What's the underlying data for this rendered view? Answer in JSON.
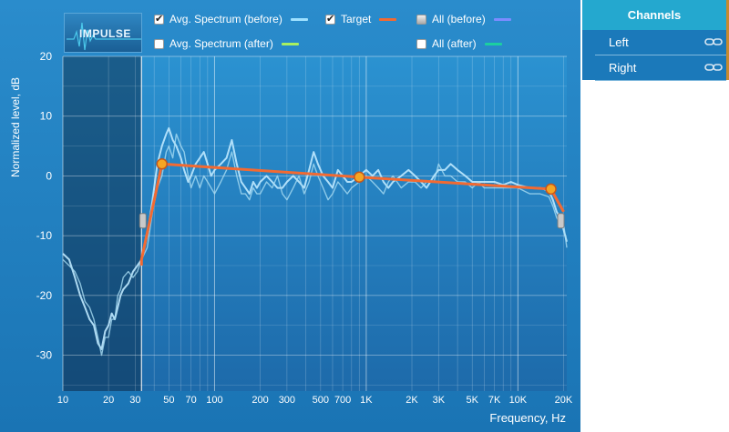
{
  "impulse_button": {
    "label": "IMPULSE"
  },
  "legend": [
    {
      "id": "avg-before",
      "label": "Avg. Spectrum (before)",
      "checked": true,
      "state": "checked",
      "color": "#9fe1ff"
    },
    {
      "id": "target",
      "label": "Target",
      "checked": true,
      "state": "checked",
      "color": "#f26a32"
    },
    {
      "id": "all-before",
      "label": "All (before)",
      "checked": false,
      "state": "partial",
      "color": "#7c8cff"
    },
    {
      "id": "avg-after",
      "label": "Avg. Spectrum (after)",
      "checked": false,
      "state": "unchecked",
      "color": "#a8f060"
    },
    {
      "id": "all-after",
      "label": "All (after)",
      "checked": false,
      "state": "unchecked",
      "color": "#1ccfa0"
    }
  ],
  "channels": {
    "title": "Channels",
    "items": [
      {
        "label": "Left",
        "icon": "link-icon"
      },
      {
        "label": "Right",
        "icon": "link-icon"
      }
    ]
  },
  "chart_data": {
    "type": "line",
    "xlabel": "Frequency, Hz",
    "ylabel": "Normalized level, dB",
    "xscale": "log",
    "xlim": [
      10,
      21000
    ],
    "ylim": [
      -36,
      20
    ],
    "x_ticks": [
      {
        "v": 10,
        "label": "10"
      },
      {
        "v": 20,
        "label": "20"
      },
      {
        "v": 30,
        "label": "30"
      },
      {
        "v": 50,
        "label": "50"
      },
      {
        "v": 70,
        "label": "70"
      },
      {
        "v": 100,
        "label": "100"
      },
      {
        "v": 200,
        "label": "200"
      },
      {
        "v": 300,
        "label": "300"
      },
      {
        "v": 500,
        "label": "500"
      },
      {
        "v": 700,
        "label": "700"
      },
      {
        "v": 1000,
        "label": "1K"
      },
      {
        "v": 2000,
        "label": "2K"
      },
      {
        "v": 3000,
        "label": "3K"
      },
      {
        "v": 5000,
        "label": "5K"
      },
      {
        "v": 7000,
        "label": "7K"
      },
      {
        "v": 10000,
        "label": "10K"
      },
      {
        "v": 20000,
        "label": "20K"
      }
    ],
    "y_ticks": [
      20,
      10,
      0,
      -10,
      -20,
      -30
    ],
    "excluded_range": [
      10,
      33
    ],
    "target": {
      "name": "Target",
      "points": [
        [
          33,
          -15
        ],
        [
          33,
          -14
        ],
        [
          45,
          2
        ],
        [
          900,
          -0.2
        ],
        [
          16500,
          -2.2
        ],
        [
          20000,
          -6
        ]
      ],
      "handles": [
        [
          45,
          2
        ],
        [
          900,
          -0.2
        ],
        [
          16500,
          -2.2
        ]
      ]
    },
    "series": [
      {
        "name": "Avg. Spectrum (before)",
        "points": [
          [
            10,
            -13
          ],
          [
            11,
            -14
          ],
          [
            12,
            -17
          ],
          [
            13,
            -20
          ],
          [
            14,
            -22
          ],
          [
            15,
            -24
          ],
          [
            16,
            -25
          ],
          [
            17,
            -28
          ],
          [
            18,
            -29
          ],
          [
            19,
            -26
          ],
          [
            20,
            -25
          ],
          [
            21,
            -23
          ],
          [
            22,
            -24
          ],
          [
            23,
            -22
          ],
          [
            24,
            -20
          ],
          [
            25,
            -19
          ],
          [
            27,
            -18
          ],
          [
            29,
            -16
          ],
          [
            31,
            -15
          ],
          [
            33,
            -14
          ],
          [
            36,
            -10
          ],
          [
            39,
            -4
          ],
          [
            42,
            2
          ],
          [
            45,
            5
          ],
          [
            48,
            7
          ],
          [
            50,
            8
          ],
          [
            53,
            6
          ],
          [
            56,
            5
          ],
          [
            60,
            3
          ],
          [
            63,
            1
          ],
          [
            67,
            -1
          ],
          [
            70,
            0
          ],
          [
            75,
            2
          ],
          [
            80,
            3
          ],
          [
            85,
            4
          ],
          [
            90,
            2
          ],
          [
            95,
            0
          ],
          [
            100,
            1
          ],
          [
            110,
            2
          ],
          [
            120,
            3
          ],
          [
            130,
            6
          ],
          [
            140,
            2
          ],
          [
            150,
            -1
          ],
          [
            160,
            -2
          ],
          [
            170,
            -3
          ],
          [
            180,
            -1
          ],
          [
            190,
            -2
          ],
          [
            200,
            -1
          ],
          [
            220,
            0
          ],
          [
            240,
            -1
          ],
          [
            260,
            -2
          ],
          [
            280,
            -2
          ],
          [
            300,
            -1
          ],
          [
            330,
            0
          ],
          [
            360,
            -1
          ],
          [
            390,
            -2
          ],
          [
            420,
            1
          ],
          [
            450,
            4
          ],
          [
            480,
            2
          ],
          [
            520,
            0
          ],
          [
            560,
            -1
          ],
          [
            600,
            -2
          ],
          [
            650,
            1
          ],
          [
            700,
            0
          ],
          [
            750,
            -1
          ],
          [
            800,
            -1
          ],
          [
            900,
            0
          ],
          [
            1000,
            1
          ],
          [
            1100,
            0
          ],
          [
            1200,
            1
          ],
          [
            1300,
            -1
          ],
          [
            1400,
            -2
          ],
          [
            1500,
            -1
          ],
          [
            1700,
            0
          ],
          [
            1900,
            1
          ],
          [
            2100,
            0
          ],
          [
            2300,
            -1
          ],
          [
            2500,
            -2
          ],
          [
            2800,
            0
          ],
          [
            3000,
            1
          ],
          [
            3300,
            1
          ],
          [
            3600,
            2
          ],
          [
            4000,
            1
          ],
          [
            4500,
            0
          ],
          [
            5000,
            -1
          ],
          [
            5500,
            -1
          ],
          [
            6000,
            -1
          ],
          [
            7000,
            -1
          ],
          [
            8000,
            -1.5
          ],
          [
            9000,
            -1
          ],
          [
            10000,
            -1.5
          ],
          [
            12000,
            -2
          ],
          [
            14000,
            -2
          ],
          [
            16000,
            -2.5
          ],
          [
            17000,
            -4
          ],
          [
            18000,
            -6
          ],
          [
            19000,
            -7
          ],
          [
            20000,
            -9
          ],
          [
            21000,
            -11
          ]
        ]
      },
      {
        "name": "All (before)",
        "points": [
          [
            10,
            -14
          ],
          [
            11,
            -15
          ],
          [
            12,
            -16
          ],
          [
            13,
            -18
          ],
          [
            14,
            -21
          ],
          [
            15,
            -22
          ],
          [
            16,
            -24
          ],
          [
            17,
            -27
          ],
          [
            18,
            -30
          ],
          [
            19,
            -27
          ],
          [
            20,
            -27
          ],
          [
            21,
            -24
          ],
          [
            22,
            -24
          ],
          [
            23,
            -20
          ],
          [
            24,
            -19
          ],
          [
            25,
            -17
          ],
          [
            27,
            -16
          ],
          [
            29,
            -17
          ],
          [
            31,
            -16
          ],
          [
            33,
            -14
          ],
          [
            36,
            -12
          ],
          [
            39,
            -6
          ],
          [
            42,
            -2
          ],
          [
            45,
            0
          ],
          [
            48,
            4
          ],
          [
            50,
            5
          ],
          [
            53,
            3
          ],
          [
            56,
            7
          ],
          [
            60,
            5
          ],
          [
            63,
            4
          ],
          [
            67,
            0
          ],
          [
            70,
            -2
          ],
          [
            75,
            0
          ],
          [
            80,
            -2
          ],
          [
            85,
            0
          ],
          [
            90,
            -1
          ],
          [
            95,
            -2
          ],
          [
            100,
            -3
          ],
          [
            110,
            -1
          ],
          [
            120,
            1
          ],
          [
            130,
            4
          ],
          [
            140,
            0
          ],
          [
            150,
            -3
          ],
          [
            160,
            -3
          ],
          [
            170,
            -4
          ],
          [
            180,
            -2
          ],
          [
            190,
            -3
          ],
          [
            200,
            -3
          ],
          [
            220,
            -1
          ],
          [
            240,
            -2
          ],
          [
            260,
            0
          ],
          [
            280,
            -3
          ],
          [
            300,
            -4
          ],
          [
            330,
            -2
          ],
          [
            360,
            0
          ],
          [
            390,
            -3
          ],
          [
            420,
            -1
          ],
          [
            450,
            2
          ],
          [
            480,
            0
          ],
          [
            520,
            -2
          ],
          [
            560,
            -4
          ],
          [
            600,
            -3
          ],
          [
            650,
            -1
          ],
          [
            700,
            -2
          ],
          [
            750,
            -3
          ],
          [
            800,
            -2
          ],
          [
            900,
            -1
          ],
          [
            1000,
            0
          ],
          [
            1100,
            -1
          ],
          [
            1200,
            -2
          ],
          [
            1300,
            -3
          ],
          [
            1400,
            -1
          ],
          [
            1500,
            0
          ],
          [
            1700,
            -2
          ],
          [
            1900,
            -1
          ],
          [
            2100,
            -1
          ],
          [
            2300,
            -2
          ],
          [
            2500,
            -1
          ],
          [
            2800,
            -1
          ],
          [
            3000,
            2
          ],
          [
            3300,
            0
          ],
          [
            3600,
            0
          ],
          [
            4000,
            -1
          ],
          [
            4500,
            -1
          ],
          [
            5000,
            -2
          ],
          [
            5500,
            -1
          ],
          [
            6000,
            -2
          ],
          [
            7000,
            -2
          ],
          [
            8000,
            -2
          ],
          [
            9000,
            -2
          ],
          [
            10000,
            -2
          ],
          [
            12000,
            -3
          ],
          [
            14000,
            -3
          ],
          [
            16000,
            -3.5
          ],
          [
            17000,
            -5
          ],
          [
            18000,
            -7
          ],
          [
            19000,
            -8
          ],
          [
            20000,
            -8
          ],
          [
            21000,
            -12
          ]
        ]
      }
    ]
  }
}
